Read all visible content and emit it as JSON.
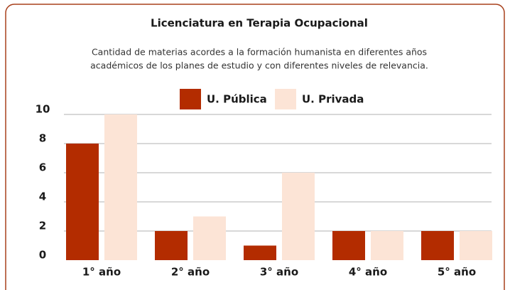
{
  "chart_data": {
    "type": "bar",
    "title": "Licenciatura en Terapia Ocupacional",
    "subtitle": [
      "Cantidad de materias acordes a la formación humanista en diferentes años",
      "académicos de los planes de estudio y con diferentes niveles de relevancia."
    ],
    "categories": [
      "1° año",
      "2° año",
      "3° año",
      "4° año",
      "5° año"
    ],
    "series": [
      {
        "name": "U. Pública",
        "color": "#b32c00",
        "values": [
          8,
          2,
          1,
          2,
          2
        ]
      },
      {
        "name": "U. Privada",
        "color": "#fce4d6",
        "values": [
          10,
          3,
          6,
          2,
          2
        ]
      }
    ],
    "ylim": [
      0,
      10
    ],
    "yticks": [
      0,
      2,
      4,
      6,
      8,
      10
    ],
    "grid": true
  }
}
